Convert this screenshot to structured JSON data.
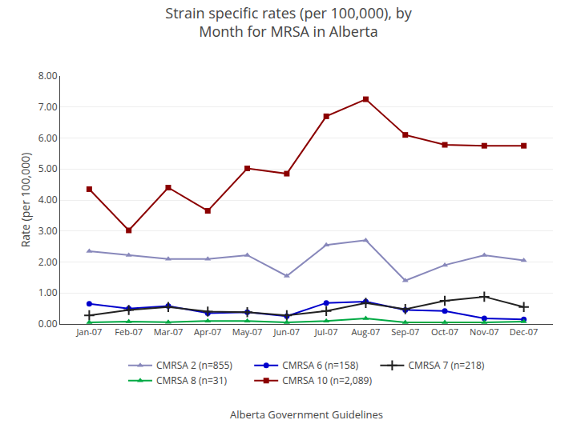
{
  "chart_data": {
    "type": "line",
    "title": "Strain specific rates (per 100,000), by\nMonth for MRSA in Alberta",
    "ylabel": "Rate (per 100,000)",
    "annotations": [
      "Alberta Government Guidelines"
    ],
    "categories": [
      "Jan-07",
      "Feb-07",
      "Mar-07",
      "Apr-07",
      "May-07",
      "Jun-07",
      "Jul-07",
      "Aug-07",
      "Sep-07",
      "Oct-07",
      "Nov-07",
      "Dec-07"
    ],
    "series": [
      {
        "name": "CMRSA 2 (n=855)",
        "color": "#8888bb",
        "marker": "triangle",
        "values": [
          2.35,
          2.22,
          2.1,
          2.1,
          2.22,
          1.55,
          2.55,
          2.7,
          1.4,
          1.9,
          2.22,
          2.05
        ]
      },
      {
        "name": "CMRSA 6 (n=158)",
        "color": "#0000cc",
        "marker": "circle",
        "values": [
          0.65,
          0.5,
          0.58,
          0.35,
          0.38,
          0.25,
          0.68,
          0.72,
          0.45,
          0.42,
          0.18,
          0.15
        ]
      },
      {
        "name": "CMRSA 7 (n=218)",
        "color": "#222222",
        "marker": "plus",
        "values": [
          0.28,
          0.45,
          0.55,
          0.4,
          0.38,
          0.28,
          0.42,
          0.68,
          0.48,
          0.75,
          0.88,
          0.55
        ]
      },
      {
        "name": "CMRSA 8 (n=31)",
        "color": "#00aa44",
        "marker": "triangle",
        "values": [
          0.05,
          0.08,
          0.06,
          0.1,
          0.1,
          0.05,
          0.1,
          0.18,
          0.05,
          0.05,
          0.05,
          0.08
        ]
      },
      {
        "name": "CMRSA 10 (n=2,089)",
        "color": "#8b0000",
        "marker": "square",
        "values": [
          4.35,
          3.02,
          4.4,
          3.65,
          5.02,
          4.85,
          6.7,
          7.25,
          6.1,
          5.78,
          5.75,
          5.75
        ]
      }
    ],
    "ylim": [
      0.0,
      8.0
    ],
    "yticks": [
      {
        "value": 0,
        "label": "0.00"
      },
      {
        "value": 1,
        "label": "1.00"
      },
      {
        "value": 2,
        "label": "2.00"
      },
      {
        "value": 3,
        "label": "3.00"
      },
      {
        "value": 4,
        "label": "4.00"
      },
      {
        "value": 5,
        "label": "5.00"
      },
      {
        "value": 6,
        "label": "6.00"
      },
      {
        "value": 7,
        "label": "7.00"
      },
      {
        "value": 8,
        "label": "8.00"
      }
    ],
    "grid": true,
    "legend": "bottom"
  }
}
